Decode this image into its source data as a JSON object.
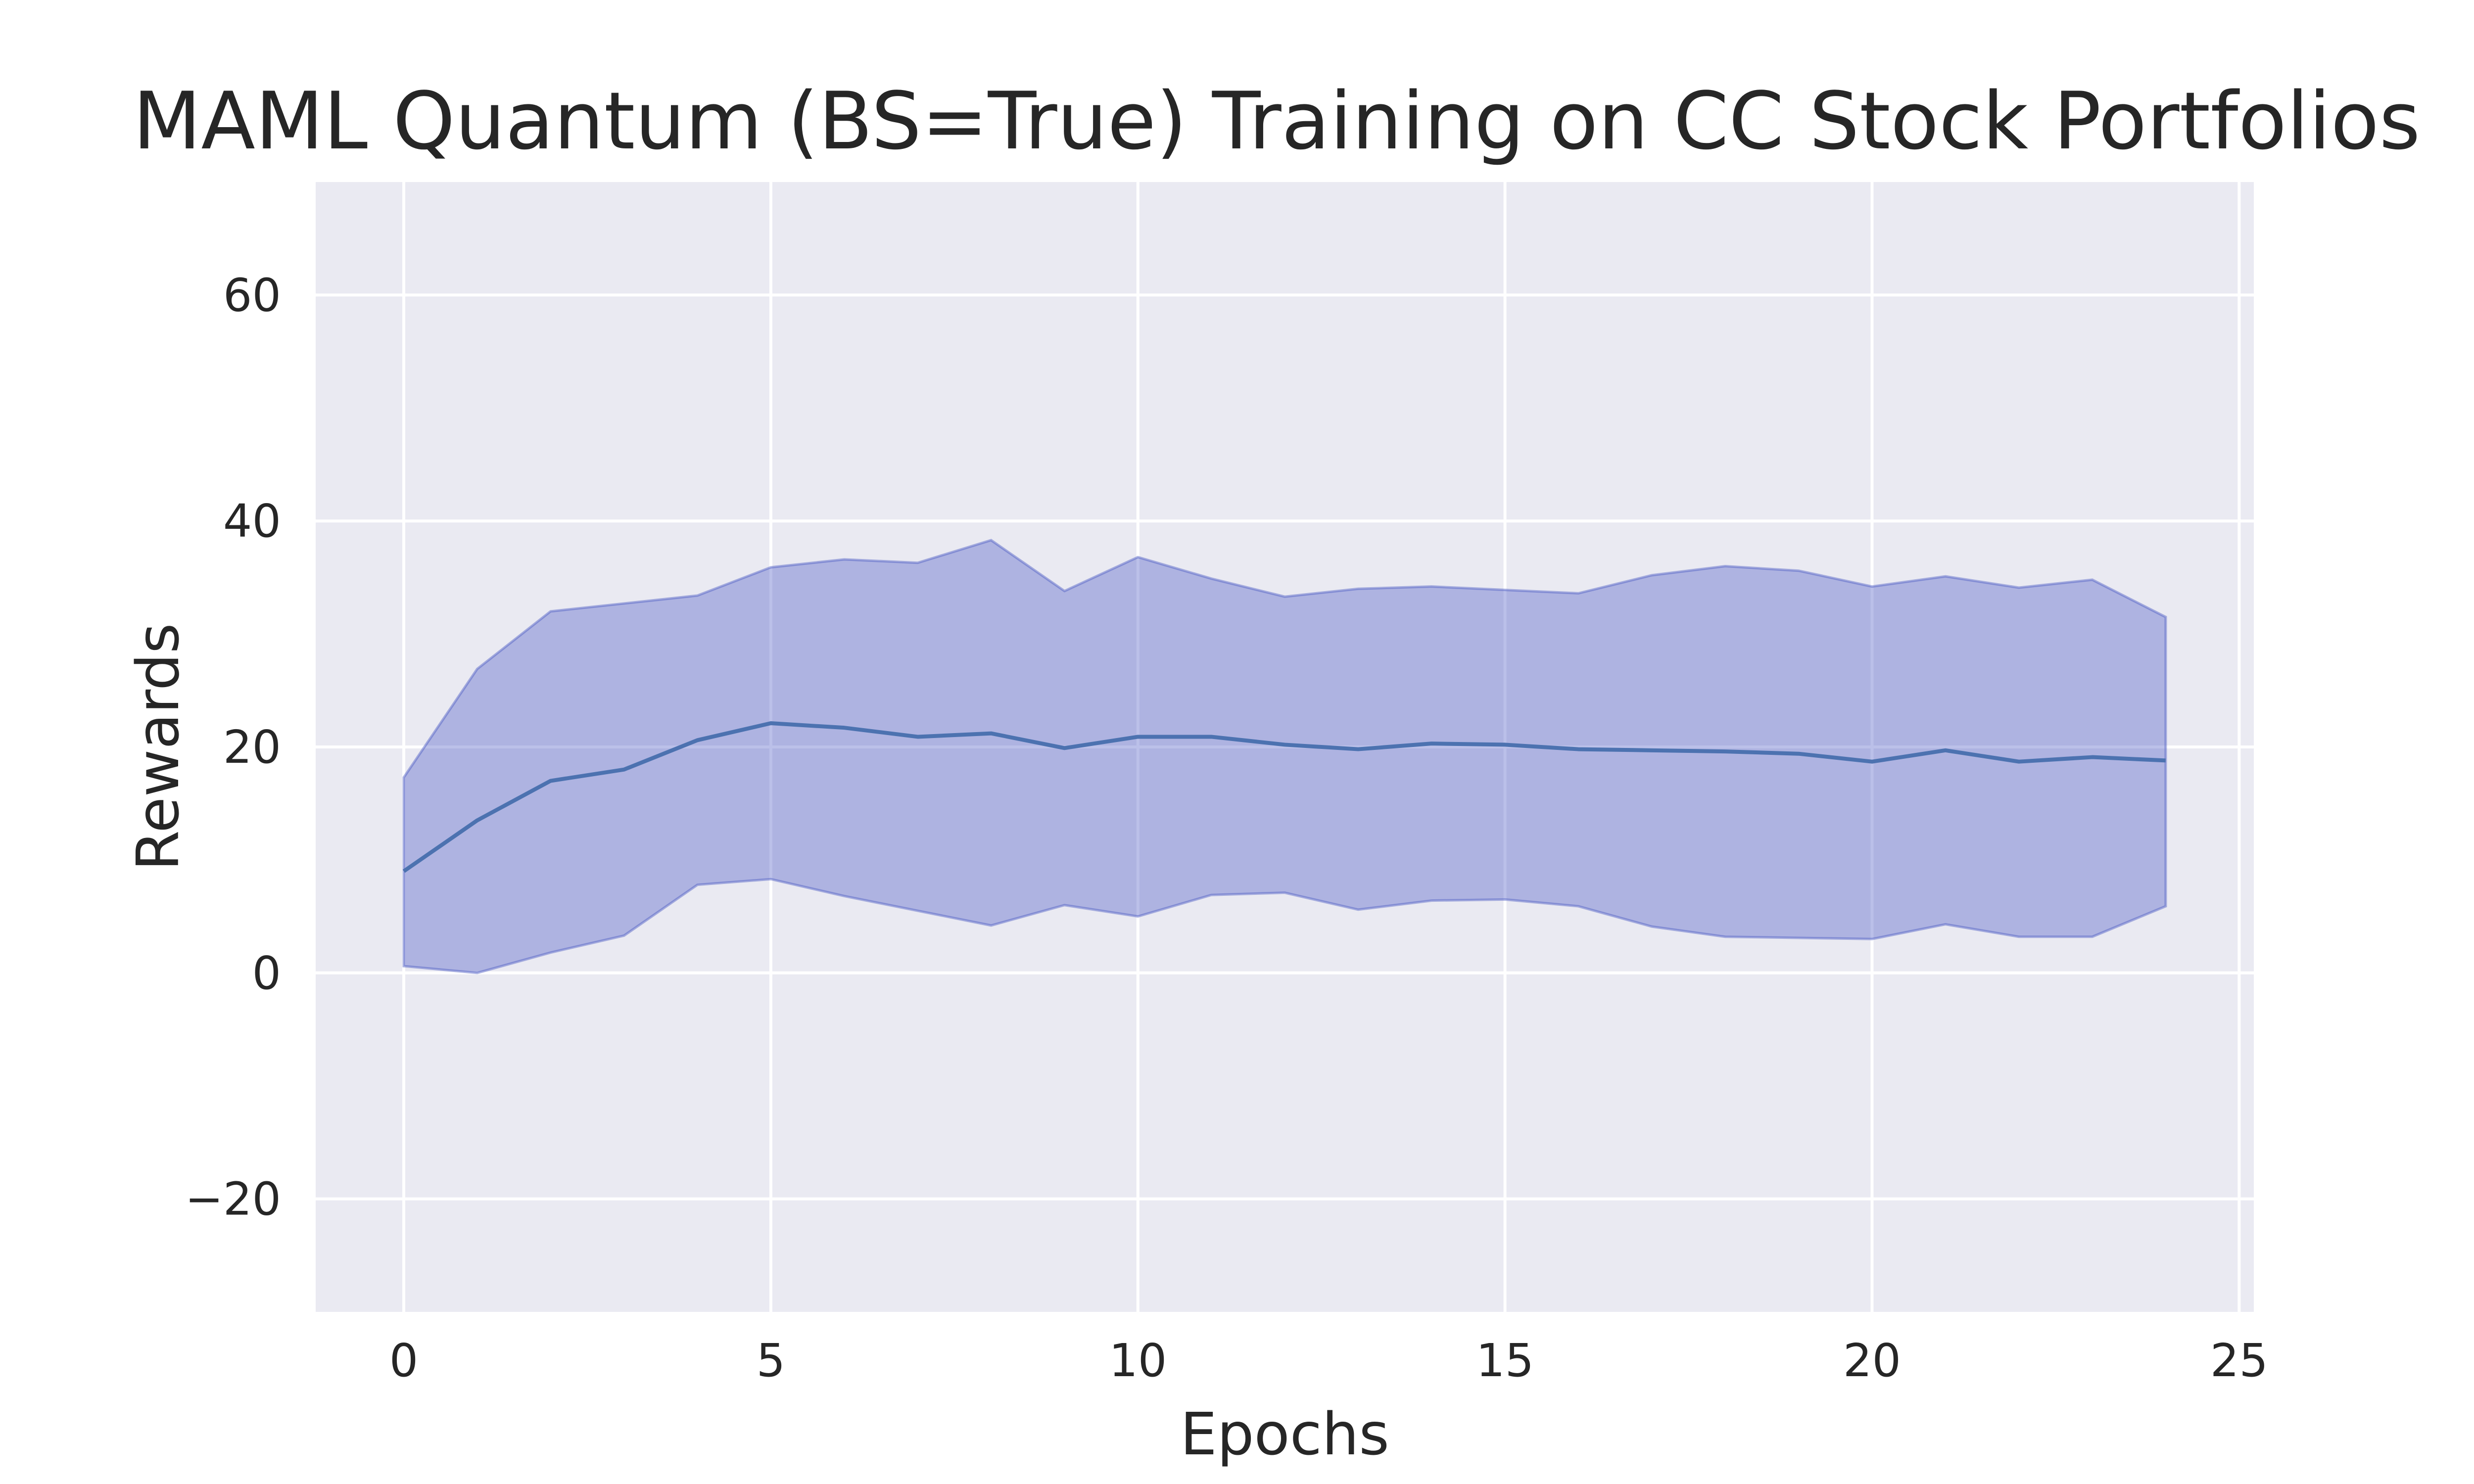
{
  "chart_data": {
    "type": "line",
    "title": "MAML Quantum (BS=True) Training on CC Stock Portfolios",
    "xlabel": "Epochs",
    "ylabel": "Rewards",
    "xlim": [
      -1.2,
      25.2
    ],
    "ylim": [
      -30,
      70
    ],
    "xticks": [
      0,
      5,
      10,
      15,
      20,
      25
    ],
    "yticks": [
      -20,
      0,
      20,
      40,
      60
    ],
    "xtick_labels": [
      "0",
      "5",
      "10",
      "15",
      "20",
      "25"
    ],
    "ytick_labels": [
      "−20",
      "0",
      "20",
      "40",
      "60"
    ],
    "grid": true,
    "colors": {
      "line": "#4c72b0",
      "band": "#4c5ac4",
      "background": "#eaeaf2"
    },
    "x": [
      0,
      1,
      2,
      3,
      4,
      5,
      6,
      7,
      8,
      9,
      10,
      11,
      12,
      13,
      14,
      15,
      16,
      17,
      18,
      19,
      20,
      21,
      22,
      23,
      24
    ],
    "series": [
      {
        "values": [
          9.0,
          13.5,
          17.0,
          18.0,
          20.6,
          22.1,
          21.7,
          20.9,
          21.2,
          19.9,
          20.9,
          20.9,
          20.2,
          19.8,
          20.3,
          20.2,
          19.8,
          19.7,
          19.6,
          19.4,
          18.7,
          19.7,
          18.7,
          19.1,
          18.8
        ],
        "lower": [
          0.6,
          0.0,
          1.8,
          3.3,
          7.8,
          8.3,
          6.8,
          5.5,
          4.2,
          6.0,
          5.0,
          6.9,
          7.1,
          5.6,
          6.4,
          6.5,
          5.9,
          4.1,
          3.2,
          3.1,
          3.0,
          4.3,
          3.2,
          3.2,
          5.9
        ],
        "upper": [
          17.3,
          26.9,
          32.0,
          32.7,
          33.4,
          35.9,
          36.6,
          36.3,
          38.3,
          33.8,
          36.8,
          34.9,
          33.3,
          34.0,
          34.2,
          33.9,
          33.6,
          35.2,
          36.0,
          35.6,
          34.2,
          35.1,
          34.1,
          34.8,
          31.5
        ]
      }
    ]
  }
}
